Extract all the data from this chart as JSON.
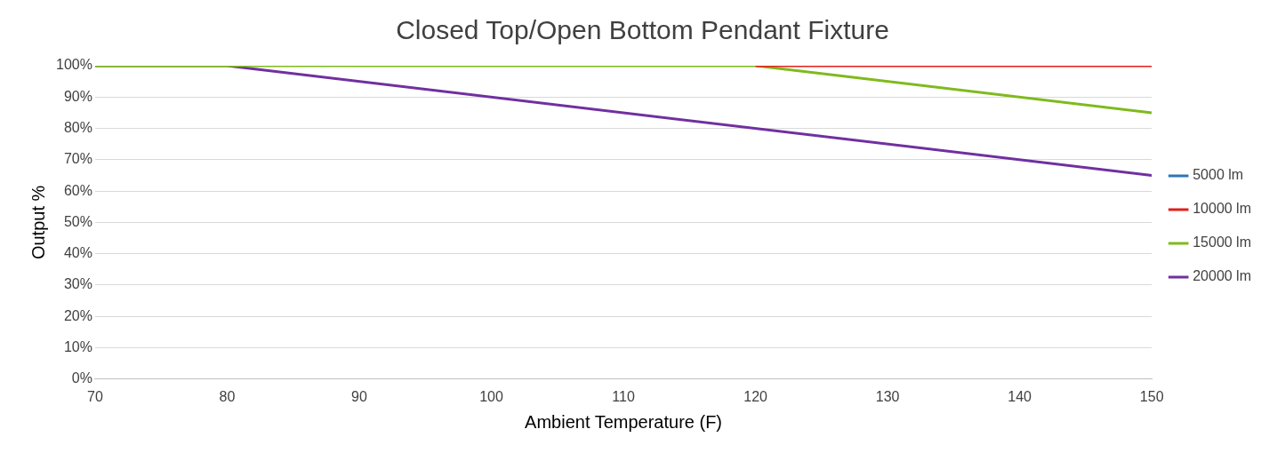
{
  "chart_data": {
    "type": "line",
    "title": "Closed Top/Open Bottom Pendant Fixture",
    "xlabel": "Ambient Temperature (F)",
    "ylabel": "Output %",
    "series": [
      {
        "name": "5000 lm",
        "color": "#2e75b6"
      },
      {
        "name": "10000 lm",
        "color": "#e0201b",
        "x": [
          120,
          150
        ],
        "values": [
          100,
          100
        ]
      },
      {
        "name": "15000 lm",
        "color": "#7fba1d",
        "x": [
          70,
          120,
          150
        ],
        "values": [
          100,
          100,
          85
        ]
      },
      {
        "name": "20000 lm",
        "color": "#7030a0",
        "x": [
          70,
          80,
          150
        ],
        "values": [
          100,
          100,
          65
        ]
      }
    ],
    "xlim": [
      70,
      150
    ],
    "xticks": [
      70,
      80,
      90,
      100,
      110,
      120,
      130,
      140,
      150
    ],
    "ylim": [
      0,
      100
    ],
    "yticks": [
      {
        "value": 0,
        "label": "0%"
      },
      {
        "value": 10,
        "label": "10%"
      },
      {
        "value": 20,
        "label": "20%"
      },
      {
        "value": 30,
        "label": "30%"
      },
      {
        "value": 40,
        "label": "40%"
      },
      {
        "value": 50,
        "label": "50%"
      },
      {
        "value": 60,
        "label": "60%"
      },
      {
        "value": 70,
        "label": "70%"
      },
      {
        "value": 80,
        "label": "80%"
      },
      {
        "value": 90,
        "label": "90%"
      },
      {
        "value": 100,
        "label": "100%"
      }
    ],
    "grid": "y",
    "legend": "right",
    "marker": "none",
    "line_style": "solid"
  }
}
